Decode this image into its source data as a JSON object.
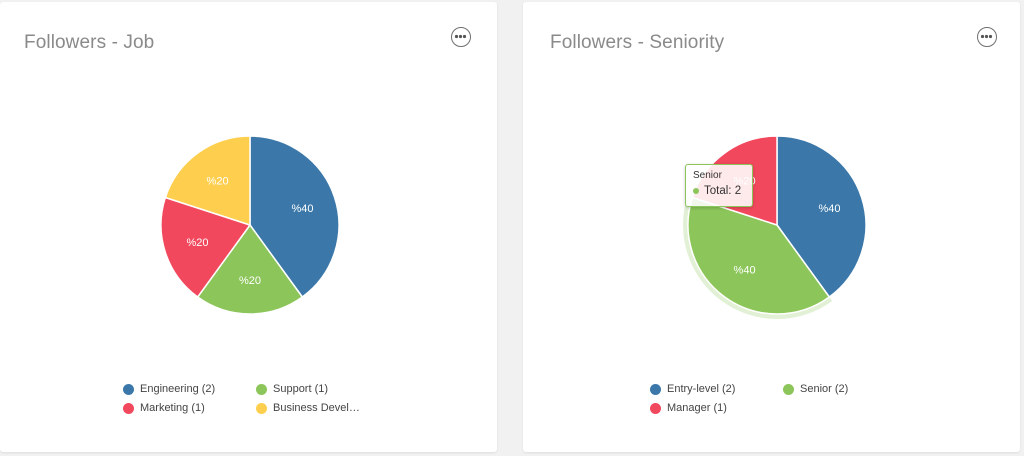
{
  "cards": [
    {
      "title": "Followers - Job",
      "menu_icon": "more-horizontal-icon",
      "chart_data": {
        "type": "pie",
        "categories": [
          "Engineering",
          "Support",
          "Marketing",
          "Business Develop..."
        ],
        "values": [
          2,
          1,
          1,
          1
        ],
        "slice_labels": [
          "%40",
          "%20",
          "%20",
          "%20"
        ],
        "colors": [
          "#3b78a9",
          "#8cc65a",
          "#f2485d",
          "#fecf4f"
        ],
        "legend": [
          "Engineering (2)",
          "Support (1)",
          "Marketing (1)",
          "Business Develop..."
        ],
        "legend_placement": "bottom"
      }
    },
    {
      "title": "Followers - Seniority",
      "menu_icon": "more-horizontal-icon",
      "chart_data": {
        "type": "pie",
        "categories": [
          "Entry-level",
          "Senior",
          "Manager"
        ],
        "values": [
          2,
          2,
          1
        ],
        "slice_labels": [
          "%40",
          "%40",
          "%20"
        ],
        "colors": [
          "#3b78a9",
          "#8cc65a",
          "#f2485d"
        ],
        "legend": [
          "Entry-level (2)",
          "Senior (2)",
          "Manager (1)"
        ],
        "legend_placement": "bottom",
        "highlighted": "Senior",
        "tooltip": {
          "title": "Senior",
          "label": "Total:",
          "value": "2"
        }
      }
    }
  ]
}
